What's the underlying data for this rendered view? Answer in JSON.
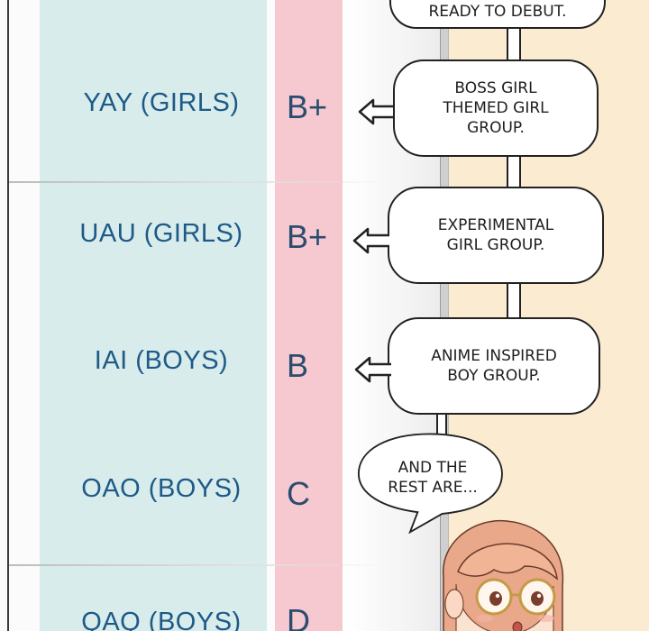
{
  "rows": [
    {
      "group": "YAY (GIRLS)",
      "grade": "B+",
      "note": "BOSS GIRL\nTHEMED GIRL\nGROUP."
    },
    {
      "group": "UAU (GIRLS)",
      "grade": "B+",
      "note": "EXPERIMENTAL\nGIRL GROUP."
    },
    {
      "group": "IAI (BOYS)",
      "grade": "B",
      "note": "ANIME INSPIRED\nBOY GROUP."
    },
    {
      "group": "OAO (BOYS)",
      "grade": "C"
    },
    {
      "group": "QAQ (BOYS)",
      "grade": "D"
    }
  ],
  "top_bubble_partial": "READY TO DEBUT.",
  "speech": "AND THE\nREST ARE...",
  "colors": {
    "group_text": "#1d5a87",
    "grade_text": "#2a4c6e",
    "teal_column": "#d9ecec",
    "pink_column": "#f6c8d0",
    "wall": "#fbebd0"
  }
}
